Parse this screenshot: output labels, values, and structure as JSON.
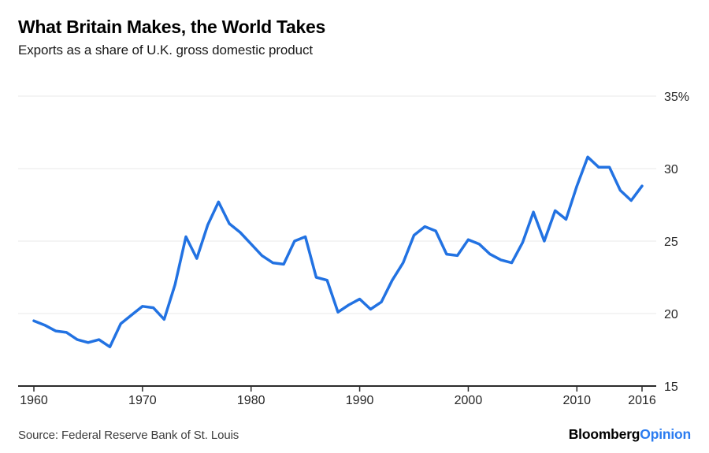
{
  "chart_data": {
    "type": "line",
    "title": "What Britain Makes, the World Takes",
    "subtitle": "Exports as a share of U.K. gross domestic product",
    "source": "Source: Federal Reserve Bank of St. Louis",
    "series_name": "U.K. exports as a share of GDP (%)",
    "years": [
      1960,
      1961,
      1962,
      1963,
      1964,
      1965,
      1966,
      1967,
      1968,
      1969,
      1970,
      1971,
      1972,
      1973,
      1974,
      1975,
      1976,
      1977,
      1978,
      1979,
      1980,
      1981,
      1982,
      1983,
      1984,
      1985,
      1986,
      1987,
      1988,
      1989,
      1990,
      1991,
      1992,
      1993,
      1994,
      1995,
      1996,
      1997,
      1998,
      1999,
      2000,
      2001,
      2002,
      2003,
      2004,
      2005,
      2006,
      2007,
      2008,
      2009,
      2010,
      2011,
      2012,
      2013,
      2014,
      2015,
      2016
    ],
    "values": [
      19.5,
      19.2,
      18.8,
      18.7,
      18.2,
      18.0,
      18.2,
      17.7,
      19.3,
      19.9,
      20.5,
      20.4,
      19.6,
      22.0,
      25.3,
      23.8,
      26.1,
      27.7,
      26.2,
      25.6,
      24.8,
      24.0,
      23.5,
      23.4,
      25.0,
      25.3,
      22.5,
      22.3,
      20.1,
      20.6,
      21.0,
      20.3,
      20.8,
      22.3,
      23.5,
      25.4,
      26.0,
      25.7,
      24.1,
      24.0,
      25.1,
      24.8,
      24.1,
      23.7,
      23.5,
      24.9,
      27.0,
      25.0,
      27.1,
      26.5,
      28.8,
      30.8,
      30.1,
      30.1,
      28.5,
      27.8,
      28.8
    ],
    "xlim": [
      1960,
      2016
    ],
    "ylim": [
      15,
      35
    ],
    "x_ticks": [
      1960,
      1970,
      1980,
      1990,
      2000,
      2010,
      2016
    ],
    "x_tick_labels": [
      "1960",
      "1970",
      "1980",
      "1990",
      "2000",
      "2010",
      "2016"
    ],
    "y_ticks": [
      35,
      30,
      25,
      20,
      15
    ],
    "y_tick_labels": [
      "35%",
      "30",
      "25",
      "20",
      "15"
    ],
    "grid": "horizontal gridlines at 20/25/30/35, dark baseline axis at 15",
    "legend": "none",
    "xlabel": "",
    "ylabel": ""
  },
  "footer": {
    "brand_black": "Bloomberg",
    "brand_accent": "Opinion"
  },
  "colors": {
    "line": "#2272e2",
    "grid": "#e9e9e9",
    "axis": "#2b2b2b",
    "tick_text": "#262626",
    "brand_accent": "#2b7cf0"
  }
}
